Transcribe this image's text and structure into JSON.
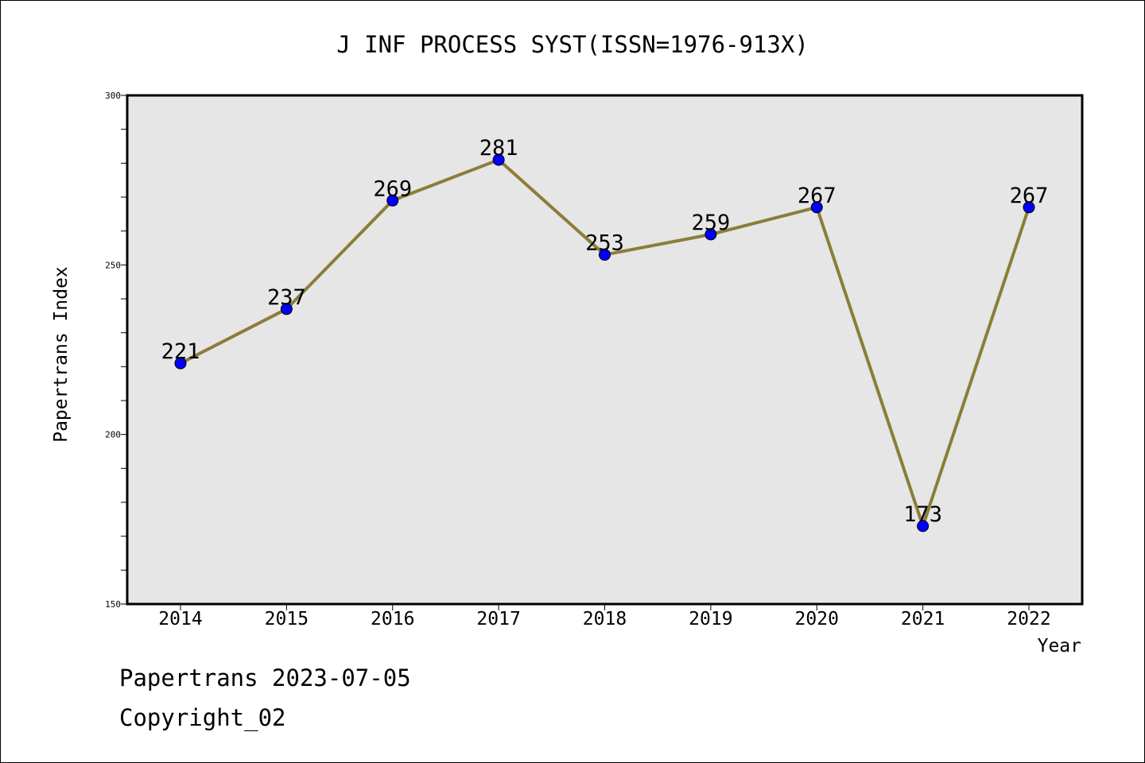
{
  "chart_data": {
    "type": "line",
    "title": "J INF PROCESS SYST(ISSN=1976-913X)",
    "xlabel": "Year",
    "ylabel": "Papertrans Index",
    "categories": [
      "2014",
      "2015",
      "2016",
      "2017",
      "2018",
      "2019",
      "2020",
      "2021",
      "2022"
    ],
    "series": [
      {
        "values": [
          221,
          237,
          269,
          281,
          253,
          259,
          267,
          173,
          267
        ]
      }
    ],
    "data_labels": [
      "221",
      "237",
      "269",
      "281",
      "253",
      "259",
      "267",
      "173",
      "267"
    ],
    "ylim": [
      150,
      300
    ],
    "y_ticks": [
      150,
      200,
      250,
      300
    ],
    "y_tick_labels": [
      "150",
      "200",
      "250",
      "300"
    ],
    "y_minor_step": 10,
    "grid": false,
    "colors": {
      "line": "#8b7d3a",
      "marker": "#0000ff",
      "plot_background": "#e6e6e6"
    }
  },
  "footer": {
    "line1": "Papertrans 2023-07-05",
    "line2": "Copyright_02"
  }
}
